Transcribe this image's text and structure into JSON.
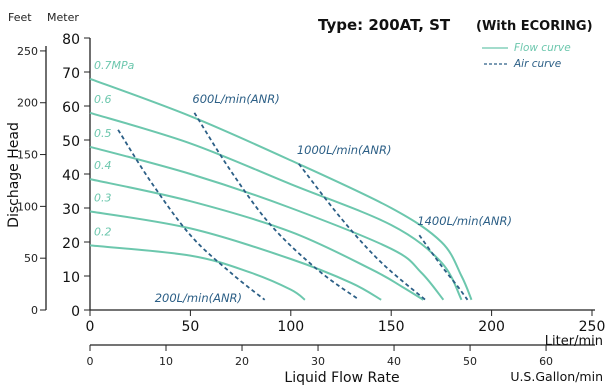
{
  "chart_data": {
    "type": "line",
    "title": "Type: 200AT, ST",
    "title_note": "(With ECORING)",
    "y_unit_feet": "Feet",
    "y_unit_meter": "Meter",
    "ylabel": "Dischage Head",
    "xlabel": "Liquid Flow Rate",
    "x_unit_liter": "Liter/min",
    "x_unit_gallon": "U.S.Gallon/min",
    "xlim": [
      0,
      250
    ],
    "ylim": [
      0,
      80
    ],
    "x_ticks_liter": [
      "0",
      "50",
      "100",
      "150",
      "200",
      "250"
    ],
    "y_ticks_meter": [
      "0",
      "10",
      "20",
      "30",
      "40",
      "50",
      "60",
      "70",
      "80"
    ],
    "y_ticks_feet": [
      "0",
      "50",
      "100",
      "150",
      "200",
      "250"
    ],
    "x_ticks_gallon": [
      "0",
      "10",
      "20",
      "30",
      "40",
      "50",
      "60"
    ],
    "legend": [
      {
        "name": "Flow curve",
        "style": "solid",
        "color": "#6cc7ad"
      },
      {
        "name": "Air curve",
        "style": "dashed",
        "color": "#2c5f86"
      }
    ],
    "flow_series": [
      {
        "name": "0.7MPa",
        "x": [
          0,
          50,
          100,
          150,
          175,
          185,
          190
        ],
        "y": [
          68,
          57,
          44,
          30,
          20,
          10,
          3
        ]
      },
      {
        "name": "0.6",
        "x": [
          0,
          50,
          100,
          150,
          175,
          185
        ],
        "y": [
          58,
          49,
          37,
          25,
          14,
          3
        ]
      },
      {
        "name": "0.5",
        "x": [
          0,
          50,
          100,
          150,
          165,
          176
        ],
        "y": [
          48,
          40,
          30,
          18,
          11,
          3
        ]
      },
      {
        "name": "0.4",
        "x": [
          0,
          50,
          100,
          140,
          155,
          166
        ],
        "y": [
          38.5,
          32,
          23,
          12,
          7,
          3
        ]
      },
      {
        "name": "0.3",
        "x": [
          0,
          50,
          100,
          130,
          145
        ],
        "y": [
          29,
          24,
          15,
          8,
          3
        ]
      },
      {
        "name": "0.2",
        "x": [
          0,
          50,
          80,
          100,
          107
        ],
        "y": [
          19,
          16,
          11,
          6,
          3
        ]
      }
    ],
    "air_series": [
      {
        "name": "200L/min(ANR)",
        "x": [
          14,
          30,
          50,
          70,
          87
        ],
        "y": [
          53,
          38,
          22,
          11,
          3
        ]
      },
      {
        "name": "600L/min(ANR)",
        "x": [
          52,
          70,
          90,
          113,
          134
        ],
        "y": [
          58,
          41,
          25,
          12,
          3
        ]
      },
      {
        "name": "1000L/min(ANR)",
        "x": [
          104,
          125,
          145,
          167
        ],
        "y": [
          43,
          27,
          14,
          3
        ]
      },
      {
        "name": "1400L/min(ANR)",
        "x": [
          164,
          175,
          183,
          188
        ],
        "y": [
          22,
          13,
          7,
          3
        ]
      }
    ]
  }
}
